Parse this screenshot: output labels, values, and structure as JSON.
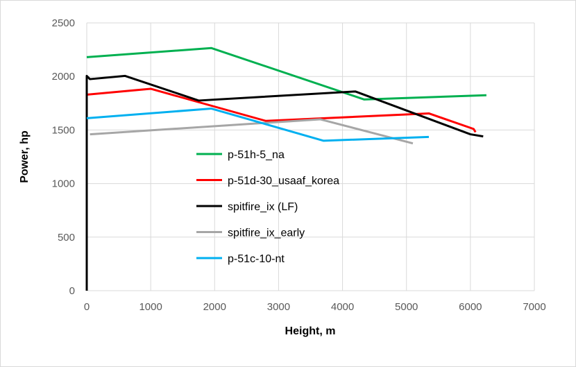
{
  "chart_data": {
    "type": "line",
    "title": "",
    "xlabel": "Height, m",
    "ylabel": "Power, hp",
    "xlim": [
      0,
      7000
    ],
    "ylim": [
      0,
      2500
    ],
    "xticks": [
      "0",
      "1000",
      "2000",
      "3000",
      "4000",
      "5000",
      "6000",
      "7000"
    ],
    "yticks": [
      "0",
      "500",
      "1000",
      "1500",
      "2000",
      "2500"
    ],
    "grid": true,
    "legend_position": "center",
    "series": [
      {
        "name": "p-51h-5_na",
        "color": "#00b050",
        "points": [
          [
            0,
            2180
          ],
          [
            1950,
            2265
          ],
          [
            4340,
            1785
          ],
          [
            6250,
            1825
          ]
        ]
      },
      {
        "name": "p-51d-30_usaaf_korea",
        "color": "#ff0000",
        "points": [
          [
            0,
            1800
          ],
          [
            0,
            1830
          ],
          [
            1000,
            1885
          ],
          [
            2800,
            1585
          ],
          [
            5350,
            1655
          ],
          [
            6050,
            1510
          ],
          [
            6080,
            1480
          ]
        ]
      },
      {
        "name": "spitfire_ix (LF)",
        "color": "#000000",
        "points": [
          [
            0,
            0
          ],
          [
            0,
            2005
          ],
          [
            50,
            1975
          ],
          [
            600,
            2005
          ],
          [
            1750,
            1775
          ],
          [
            4200,
            1860
          ],
          [
            6000,
            1460
          ],
          [
            6200,
            1440
          ]
        ]
      },
      {
        "name": "spitfire_ix_early",
        "color": "#a6a6a6",
        "points": [
          [
            50,
            1460
          ],
          [
            3650,
            1600
          ],
          [
            5100,
            1375
          ]
        ]
      },
      {
        "name": "p-51c-10-nt",
        "color": "#00b0f0",
        "points": [
          [
            0,
            1610
          ],
          [
            1950,
            1700
          ],
          [
            3700,
            1400
          ],
          [
            5350,
            1435
          ]
        ]
      }
    ]
  }
}
